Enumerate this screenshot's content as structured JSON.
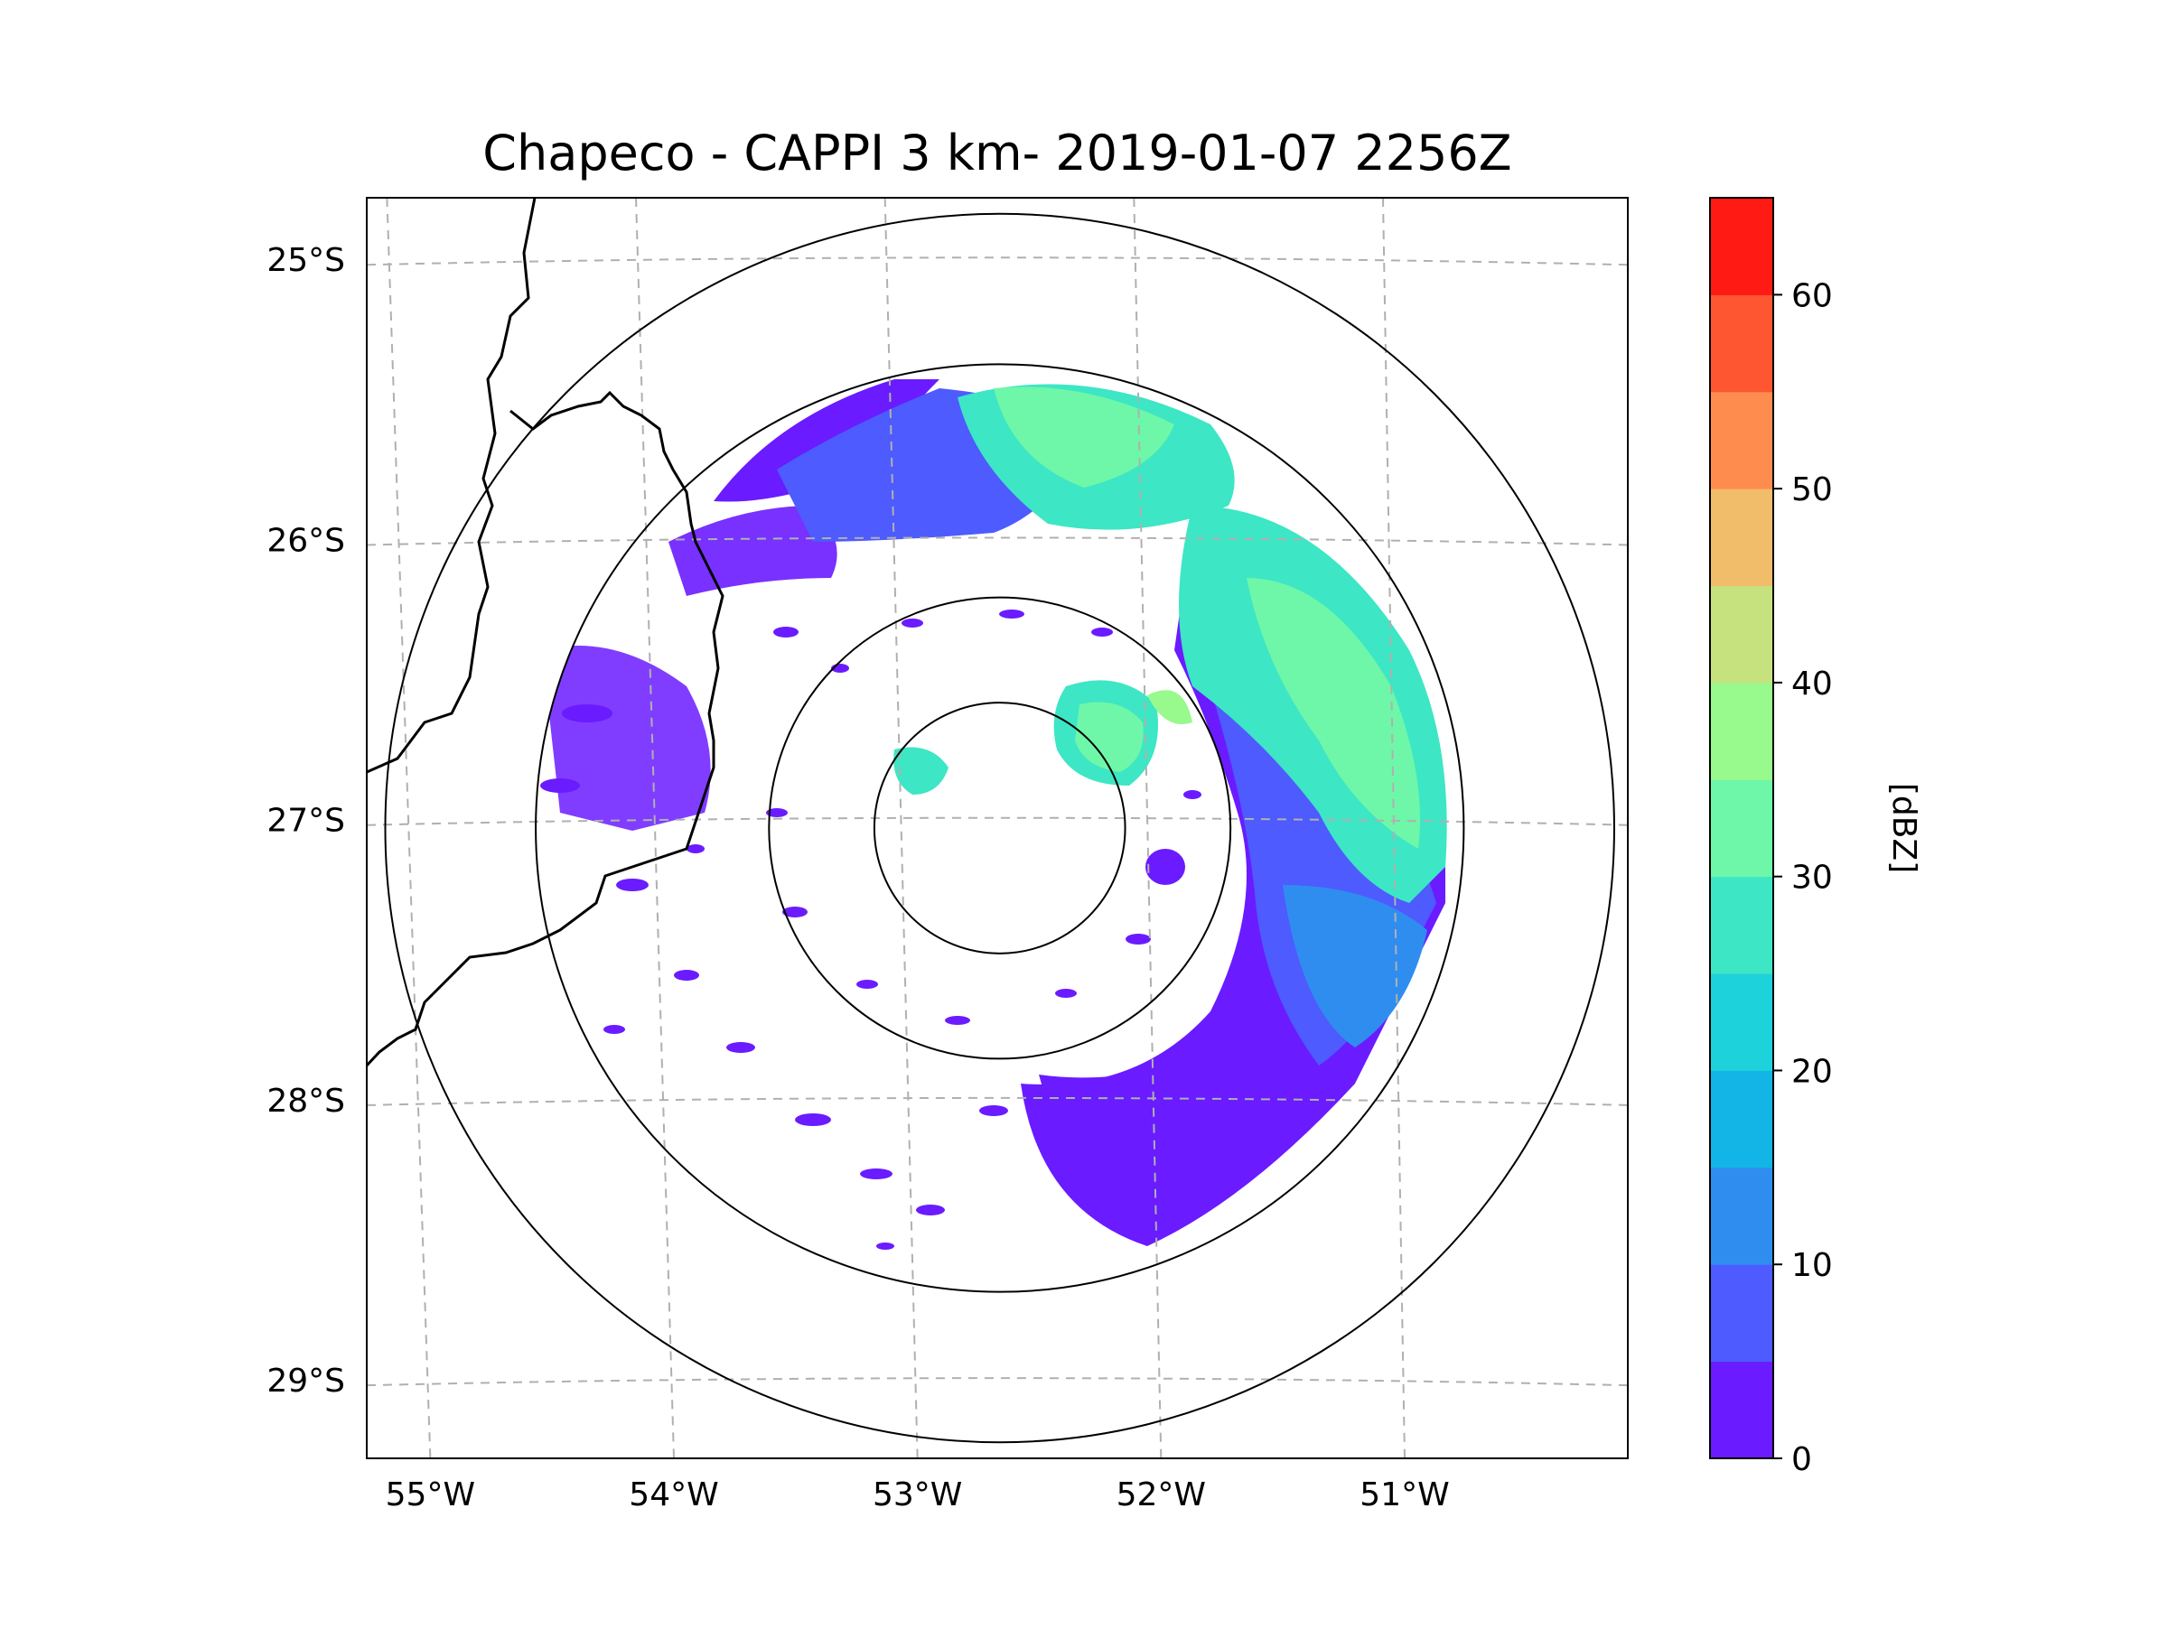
{
  "chart_data": {
    "type": "map",
    "title": "Chapeco - CAPPI 3 km- 2019-01-07 2256Z",
    "lon_range": [
      -55.17,
      -50.05
    ],
    "lat_range": [
      -29.28,
      -24.78
    ],
    "lon_ticks": [
      -55,
      -54,
      -53,
      -52,
      -51
    ],
    "lon_tick_labels": [
      "55°W",
      "54°W",
      "53°W",
      "52°W",
      "51°W"
    ],
    "lat_ticks": [
      -25,
      -26,
      -27,
      -28,
      -29
    ],
    "lat_tick_labels": [
      "25°S",
      "26°S",
      "27°S",
      "28°S",
      "29°S"
    ],
    "gridlines": true,
    "radar_center": {
      "lon": -52.6,
      "lat": -27.03
    },
    "range_rings_deg": [
      0.5,
      0.92,
      1.85,
      2.45
    ],
    "colorbar": {
      "label": "[dBZ]",
      "min": 0,
      "max": 65,
      "step": 5,
      "ticks": [
        0,
        10,
        20,
        30,
        40,
        50,
        60
      ],
      "tick_labels": [
        "0",
        "10",
        "20",
        "30",
        "40",
        "50",
        "60"
      ],
      "colors": [
        "#6a1bff",
        "#4d5bff",
        "#2f8df0",
        "#12b5e5",
        "#1ed2dc",
        "#3de6c4",
        "#6ef7a8",
        "#98f98c",
        "#c6e27e",
        "#f1bd6a",
        "#ff8c4f",
        "#ff5632",
        "#ff1a14"
      ]
    }
  }
}
